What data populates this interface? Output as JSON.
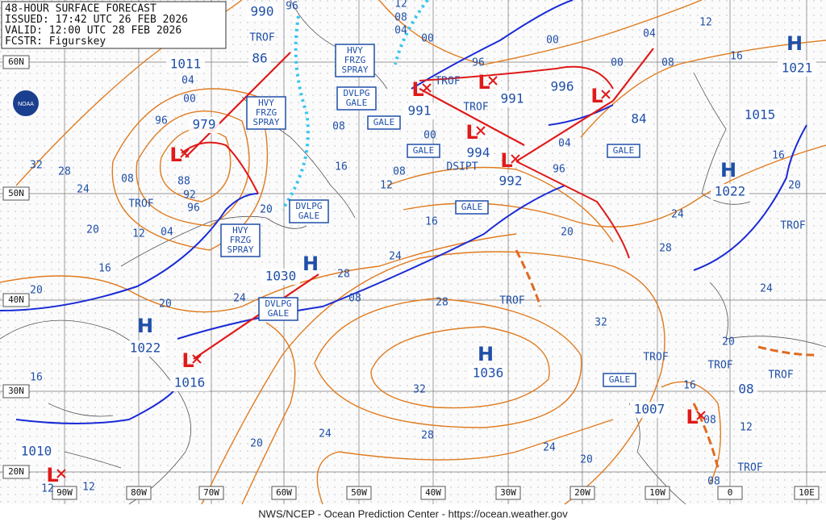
{
  "header": {
    "lines": [
      "48-HOUR SURFACE FORECAST",
      "ISSUED: 17:42 UTC 26 FEB 2026",
      "VALID: 12:00 UTC 28 FEB 2026",
      "FCSTR: Figurskey"
    ]
  },
  "footer": "NWS/NCEP - Ocean Prediction Center - https://ocean.weather.gov",
  "logo": "NOAA",
  "lat_labels": [
    "60N",
    "50N",
    "40N",
    "30N",
    "20N"
  ],
  "lon_labels": [
    "90W",
    "80W",
    "70W",
    "60W",
    "50W",
    "40W",
    "30W",
    "20W",
    "10W",
    "0",
    "10E"
  ],
  "centers": [
    {
      "pressure": "990"
    },
    {
      "pressure": "1011"
    },
    {
      "symbol": "L",
      "pressure": "979"
    },
    {
      "pressure": "86"
    },
    {
      "symbol": "L",
      "pressure": "991"
    },
    {
      "symbol": "L",
      "pressure": "994"
    },
    {
      "symbol": "L",
      "pressure": "991"
    },
    {
      "symbol": "L",
      "pressure": "992"
    },
    {
      "symbol": "L",
      "pressure": "996"
    },
    {
      "pressure": "84"
    },
    {
      "symbol": "H",
      "pressure": "1021"
    },
    {
      "pressure": "1015"
    },
    {
      "symbol": "H",
      "pressure": "1022"
    },
    {
      "symbol": "H",
      "pressure": "1030"
    },
    {
      "symbol": "H",
      "pressure": "1022"
    },
    {
      "symbol": "L",
      "pressure": "1016"
    },
    {
      "symbol": "H",
      "pressure": "1036"
    },
    {
      "symbol": "L",
      "pressure": "1007"
    },
    {
      "symbol": "L",
      "pressure": "1010"
    },
    {
      "pressure": "08"
    }
  ],
  "warnings": [
    [
      "HVY",
      "FRZG",
      "SPRAY"
    ],
    [
      "HVY",
      "FRZG",
      "SPRAY"
    ],
    [
      "HVY",
      "FRZG",
      "SPRAY"
    ],
    [
      "DVLPG",
      "GALE"
    ],
    [
      "DVLPG",
      "GALE"
    ],
    [
      "DVLPG",
      "GALE"
    ],
    [
      "GALE"
    ],
    [
      "GALE"
    ],
    [
      "GALE"
    ],
    [
      "GALE"
    ],
    [
      "GALE"
    ]
  ],
  "notes": [
    "TROF",
    "TROF",
    "TROF",
    "TROF",
    "TROF",
    "TROF",
    "TROF",
    "TROF",
    "TROF",
    "TROF",
    "DSIPT"
  ],
  "isobar_labels": [
    "96",
    "12",
    "08",
    "04",
    "00",
    "00",
    "12",
    "04",
    "16",
    "08",
    "00",
    "96",
    "04",
    "00",
    "96",
    "32",
    "28",
    "08",
    "88",
    "92",
    "24",
    "96",
    "04",
    "20",
    "12",
    "16",
    "20",
    "20",
    "24",
    "28",
    "08",
    "28",
    "24",
    "16",
    "12",
    "08",
    "16",
    "00",
    "04",
    "96",
    "20",
    "28",
    "24",
    "20",
    "16",
    "24",
    "32",
    "20",
    "16",
    "08",
    "12",
    "08",
    "20",
    "24",
    "28",
    "32",
    "24",
    "20",
    "16",
    "12",
    "12",
    "08",
    "20"
  ]
}
